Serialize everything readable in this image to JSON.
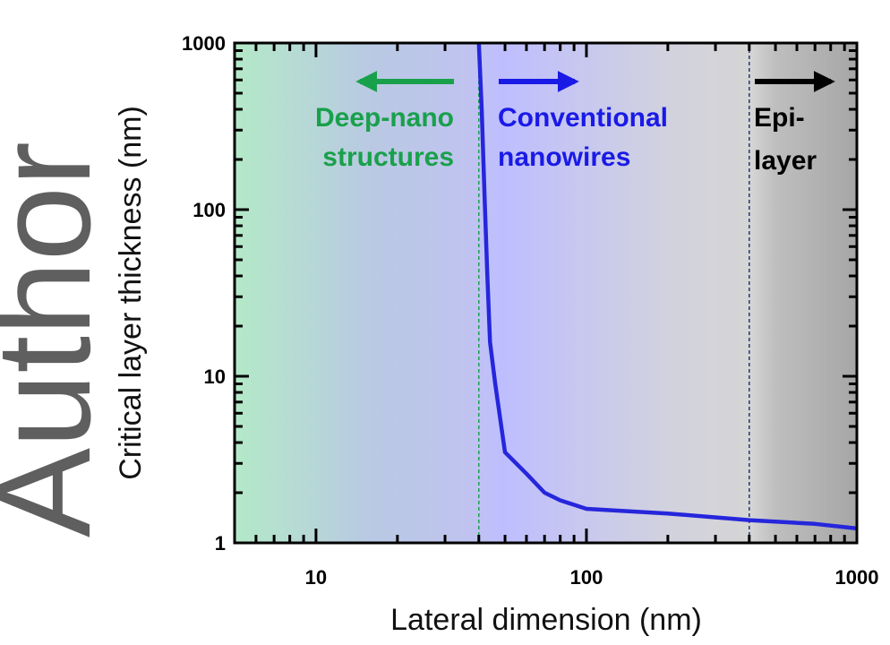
{
  "watermark": "Author",
  "chart_data": {
    "type": "line",
    "xlabel": "Lateral dimension (nm)",
    "ylabel": "Critical layer thickness (nm)",
    "xscale": "log",
    "yscale": "log",
    "xlim": [
      5,
      1000
    ],
    "ylim": [
      1,
      1000
    ],
    "x_ticks": [
      10,
      100,
      1000
    ],
    "y_ticks": [
      1,
      10,
      100,
      1000
    ],
    "x_tick_labels": [
      "10",
      "100",
      "1000"
    ],
    "y_tick_labels": [
      "1",
      "10",
      "100",
      "1000"
    ],
    "grid": false,
    "series": [
      {
        "color": "#2626dc",
        "x": [
          40,
          41,
          42,
          43,
          44,
          46,
          50,
          60,
          70,
          80,
          100,
          200,
          400,
          700,
          1000
        ],
        "y": [
          1000,
          400,
          120,
          40,
          16,
          9,
          3.5,
          2.6,
          2.0,
          1.8,
          1.6,
          1.5,
          1.37,
          1.3,
          1.22
        ]
      }
    ],
    "boundaries": [
      {
        "x": 40,
        "color": "#1ea050",
        "style": "dashed"
      },
      {
        "x": 400,
        "color": "#25386e",
        "style": "dashed"
      }
    ],
    "regions": [
      {
        "label_lines": [
          "Deep-nano",
          "structures"
        ],
        "color": "#19a04b",
        "arrow": "left"
      },
      {
        "label_lines": [
          "Conventional",
          "nanowires"
        ],
        "color": "#1a1ae6",
        "arrow": "right"
      },
      {
        "label_lines": [
          "Epi-",
          "layer"
        ],
        "color": "#000000",
        "arrow": "right"
      }
    ],
    "background_gradient": [
      "#b4e9c8",
      "#b9c9e3",
      "#c0c3f0",
      "#bebeff",
      "#d2d2de",
      "#d5d5d5",
      "#bebebe",
      "#a6a6a6"
    ]
  }
}
